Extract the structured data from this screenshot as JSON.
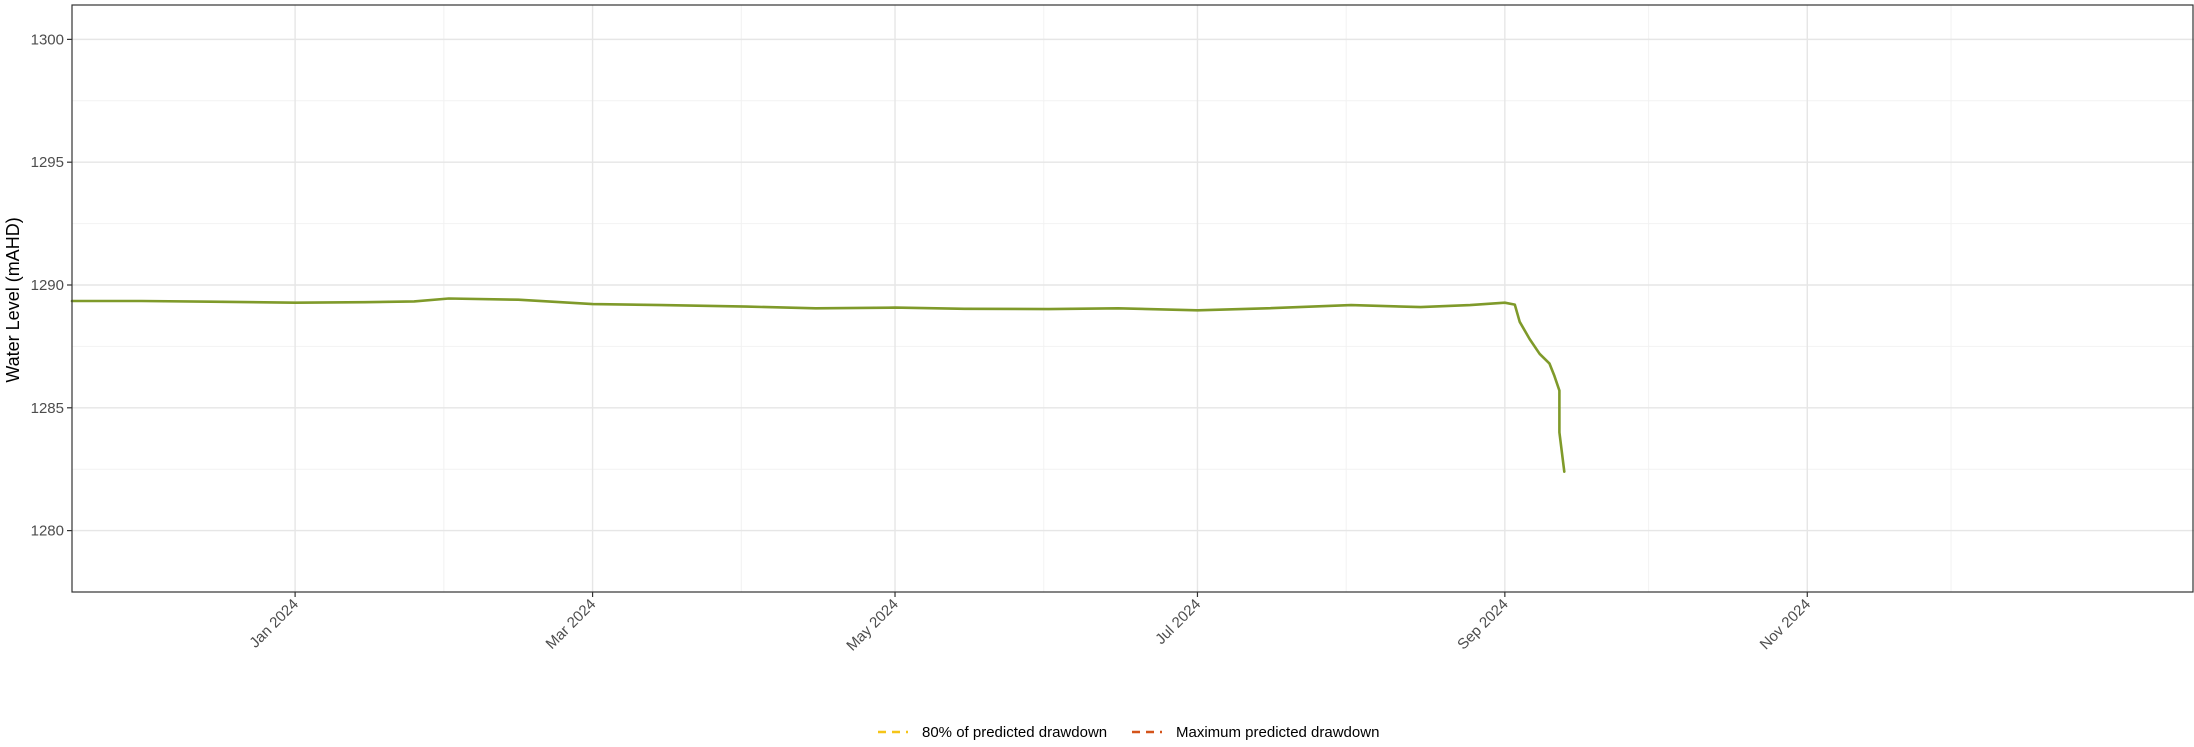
{
  "chart_data": {
    "type": "line",
    "title": "",
    "xlabel": "",
    "ylabel": "Water Level (mAHD)",
    "xlim": [
      "2023-11-17",
      "2025-01-18"
    ],
    "ylim": [
      1277.5,
      1301.4
    ],
    "x_ticks": [
      {
        "date": "2024-01-01",
        "label": "Jan 2024"
      },
      {
        "date": "2024-03-01",
        "label": "Mar 2024"
      },
      {
        "date": "2024-05-01",
        "label": "May 2024"
      },
      {
        "date": "2024-07-01",
        "label": "Jul 2024"
      },
      {
        "date": "2024-09-01",
        "label": "Sep 2024"
      },
      {
        "date": "2024-11-01",
        "label": "Nov 2024"
      }
    ],
    "x_minor_ticks": [
      "2024-01-31",
      "2024-03-31",
      "2024-05-31",
      "2024-07-31",
      "2024-09-30",
      "2024-11-30"
    ],
    "y_ticks": [
      {
        "value": 1280,
        "label": "1280"
      },
      {
        "value": 1285,
        "label": "1285"
      },
      {
        "value": 1290,
        "label": "1290"
      },
      {
        "value": 1295,
        "label": "1295"
      },
      {
        "value": 1300,
        "label": "1300"
      }
    ],
    "y_minor_ticks": [
      1282.5,
      1287.5,
      1292.5,
      1297.5
    ],
    "grid": true,
    "legend_position": "bottom",
    "series": [
      {
        "name": "",
        "color": "#7f9a2a",
        "style": "solid",
        "points": [
          {
            "x": "2023-11-17",
            "y": 1289.35
          },
          {
            "x": "2023-12-01",
            "y": 1289.35
          },
          {
            "x": "2023-12-15",
            "y": 1289.32
          },
          {
            "x": "2024-01-01",
            "y": 1289.28
          },
          {
            "x": "2024-01-15",
            "y": 1289.3
          },
          {
            "x": "2024-01-25",
            "y": 1289.33
          },
          {
            "x": "2024-02-01",
            "y": 1289.45
          },
          {
            "x": "2024-02-15",
            "y": 1289.4
          },
          {
            "x": "2024-03-01",
            "y": 1289.22
          },
          {
            "x": "2024-03-15",
            "y": 1289.18
          },
          {
            "x": "2024-04-01",
            "y": 1289.12
          },
          {
            "x": "2024-04-15",
            "y": 1289.05
          },
          {
            "x": "2024-05-01",
            "y": 1289.08
          },
          {
            "x": "2024-05-15",
            "y": 1289.03
          },
          {
            "x": "2024-06-01",
            "y": 1289.02
          },
          {
            "x": "2024-06-15",
            "y": 1289.05
          },
          {
            "x": "2024-07-01",
            "y": 1288.97
          },
          {
            "x": "2024-07-15",
            "y": 1289.05
          },
          {
            "x": "2024-08-01",
            "y": 1289.18
          },
          {
            "x": "2024-08-15",
            "y": 1289.1
          },
          {
            "x": "2024-08-25",
            "y": 1289.18
          },
          {
            "x": "2024-09-01",
            "y": 1289.28
          },
          {
            "x": "2024-09-03",
            "y": 1289.2
          },
          {
            "x": "2024-09-04",
            "y": 1288.5
          },
          {
            "x": "2024-09-06",
            "y": 1287.8
          },
          {
            "x": "2024-09-08",
            "y": 1287.2
          },
          {
            "x": "2024-09-10",
            "y": 1286.8
          },
          {
            "x": "2024-09-11",
            "y": 1286.3
          },
          {
            "x": "2024-09-12",
            "y": 1285.7
          },
          {
            "x": "2024-09-12",
            "y": 1284.0
          },
          {
            "x": "2024-09-13",
            "y": 1282.4
          }
        ]
      }
    ],
    "legend": [
      {
        "label": "80% of predicted drawdown",
        "color": "#f5c518",
        "style": "dashed"
      },
      {
        "label": "Maximum predicted drawdown",
        "color": "#d4541a",
        "style": "dashed"
      }
    ]
  }
}
